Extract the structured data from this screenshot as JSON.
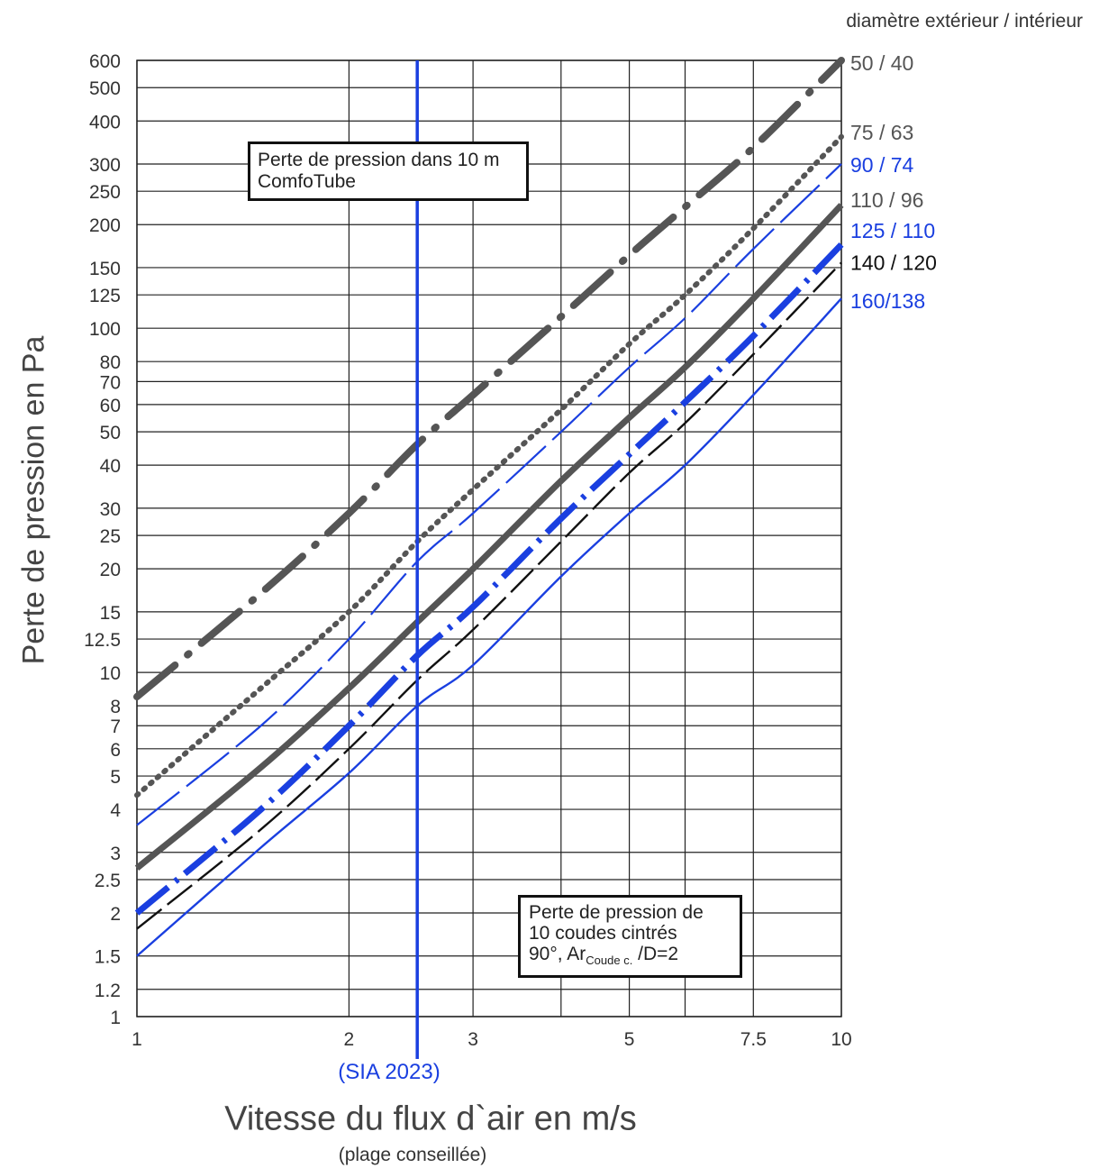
{
  "header_note": "diamètre extérieur / intérieur",
  "boxes": {
    "ten_m": [
      "Perte de pression dans 10 m",
      "ComfoTube"
    ],
    "bends": {
      "line1": "Perte de pression de",
      "line2": "10 coudes cintrés",
      "degrees": "90°, Ar",
      "sub": "Coude c.",
      "ratio": " /D=2"
    }
  },
  "sia_label": "(SIA 2023)",
  "range_note": "(plage conseillée)",
  "colors": {
    "grid": "#222222",
    "gray_series": "#555555",
    "blue_series": "#1a3fe0",
    "black_series": "#111111",
    "sia_line": "#1a3fe0"
  },
  "chart_data": {
    "type": "line",
    "xlabel": "Vitesse du flux d`air en m/s",
    "ylabel": "Perte de pression en Pa",
    "x_scale": "log",
    "y_scale": "log",
    "xlim": [
      1,
      10
    ],
    "ylim": [
      1,
      600
    ],
    "grid": true,
    "x_ticks": [
      {
        "value": 1,
        "label": "1"
      },
      {
        "value": 2,
        "label": "2"
      },
      {
        "value": 3,
        "label": "3"
      },
      {
        "value": 5,
        "label": "5"
      },
      {
        "value": 7.5,
        "label": "7.5"
      },
      {
        "value": 10,
        "label": "10"
      }
    ],
    "x_grid": [
      1,
      2,
      2.5,
      3,
      4,
      5,
      6,
      7.5,
      10
    ],
    "y_ticks": [
      {
        "value": 1,
        "label": "1"
      },
      {
        "value": 1.2,
        "label": "1.2"
      },
      {
        "value": 1.5,
        "label": "1.5"
      },
      {
        "value": 2,
        "label": "2"
      },
      {
        "value": 2.5,
        "label": "2.5"
      },
      {
        "value": 3,
        "label": "3"
      },
      {
        "value": 4,
        "label": "4"
      },
      {
        "value": 5,
        "label": "5"
      },
      {
        "value": 6,
        "label": "6"
      },
      {
        "value": 7,
        "label": "7"
      },
      {
        "value": 8,
        "label": "8"
      },
      {
        "value": 10,
        "label": "10"
      },
      {
        "value": 12.5,
        "label": "12.5"
      },
      {
        "value": 15,
        "label": "15"
      },
      {
        "value": 20,
        "label": "20"
      },
      {
        "value": 25,
        "label": "25"
      },
      {
        "value": 30,
        "label": "30"
      },
      {
        "value": 40,
        "label": "40"
      },
      {
        "value": 50,
        "label": "50"
      },
      {
        "value": 60,
        "label": "60"
      },
      {
        "value": 70,
        "label": "70"
      },
      {
        "value": 80,
        "label": "80"
      },
      {
        "value": 100,
        "label": "100"
      },
      {
        "value": 125,
        "label": "125"
      },
      {
        "value": 150,
        "label": "150"
      },
      {
        "value": 200,
        "label": "200"
      },
      {
        "value": 250,
        "label": "250"
      },
      {
        "value": 300,
        "label": "300"
      },
      {
        "value": 400,
        "label": "400"
      },
      {
        "value": 500,
        "label": "500"
      },
      {
        "value": 600,
        "label": "600"
      }
    ],
    "sia_line_x": 2.5,
    "series": [
      {
        "name": "50 / 40",
        "color": "gray",
        "style": "long-dash-dot",
        "label_y": 590,
        "x": [
          1,
          1.5,
          2,
          2.5,
          3,
          4,
          5,
          6,
          7.5,
          10
        ],
        "y": [
          8.5,
          17,
          29,
          46,
          64,
          108,
          163,
          225,
          335,
          600
        ]
      },
      {
        "name": "75 / 63",
        "color": "gray",
        "style": "dotted",
        "label_y": 370,
        "x": [
          1,
          1.5,
          2,
          2.5,
          3,
          4,
          5,
          6,
          7.5,
          10
        ],
        "y": [
          4.4,
          9,
          15,
          24,
          34,
          58,
          90,
          125,
          195,
          360
        ]
      },
      {
        "name": "90 / 74",
        "color": "blue",
        "style": "thin-long-dash",
        "label_y": 298,
        "x": [
          1,
          1.5,
          2,
          2.5,
          3,
          4,
          5,
          6,
          7.5,
          10
        ],
        "y": [
          3.6,
          7,
          12.5,
          21,
          29,
          50,
          77,
          107,
          170,
          300
        ]
      },
      {
        "name": "110 / 96",
        "color": "gray",
        "style": "thick-solid",
        "label_y": 236,
        "x": [
          1,
          1.5,
          2,
          2.5,
          3,
          4,
          5,
          6,
          7.5,
          10
        ],
        "y": [
          2.7,
          5.3,
          9,
          14,
          20,
          36,
          55,
          77,
          122,
          228
        ]
      },
      {
        "name": "125 / 110",
        "color": "blue",
        "style": "thick-dash-dot",
        "label_y": 192,
        "x": [
          1,
          1.5,
          2,
          2.5,
          3,
          4,
          5,
          6,
          7.5,
          10
        ],
        "y": [
          2,
          4,
          7,
          11.2,
          15.5,
          28,
          43,
          61,
          95,
          175
        ]
      },
      {
        "name": "140 / 120",
        "color": "black",
        "style": "thin-dash",
        "label_y": 155,
        "x": [
          1,
          1.5,
          2,
          2.5,
          3,
          4,
          5,
          6,
          7.5,
          10
        ],
        "y": [
          1.8,
          3.5,
          6,
          9.5,
          13.3,
          24,
          38,
          53,
          84,
          155
        ]
      },
      {
        "name": "160/138",
        "color": "blue",
        "style": "thin-solid",
        "label_y": 120,
        "x": [
          1,
          1.5,
          2,
          2.5,
          3,
          4,
          5,
          6,
          7.5,
          10
        ],
        "y": [
          1.5,
          3.1,
          5.1,
          8,
          10.5,
          19,
          29,
          40,
          64,
          122
        ]
      }
    ]
  }
}
